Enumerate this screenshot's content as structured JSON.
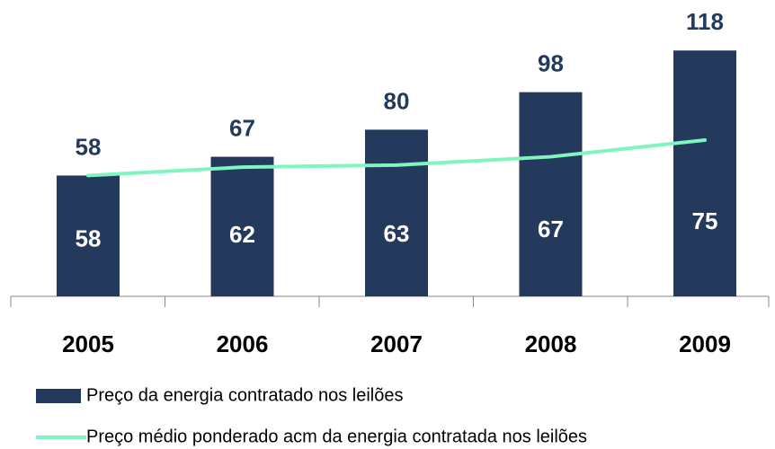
{
  "chart_data": {
    "type": "bar",
    "categories": [
      "2005",
      "2006",
      "2007",
      "2008",
      "2009"
    ],
    "series": [
      {
        "name": "Preço da energia contratado nos leilões",
        "type": "bar",
        "color": "#243a5c",
        "values": [
          58,
          67,
          80,
          98,
          118
        ]
      },
      {
        "name": "Preço médio ponderado acm da energia contratada nos leilões",
        "type": "line",
        "color": "#7ff5c0",
        "values": [
          58,
          62,
          63,
          67,
          75
        ]
      }
    ],
    "ylim": [
      0,
      125
    ],
    "legend": "bottom"
  }
}
